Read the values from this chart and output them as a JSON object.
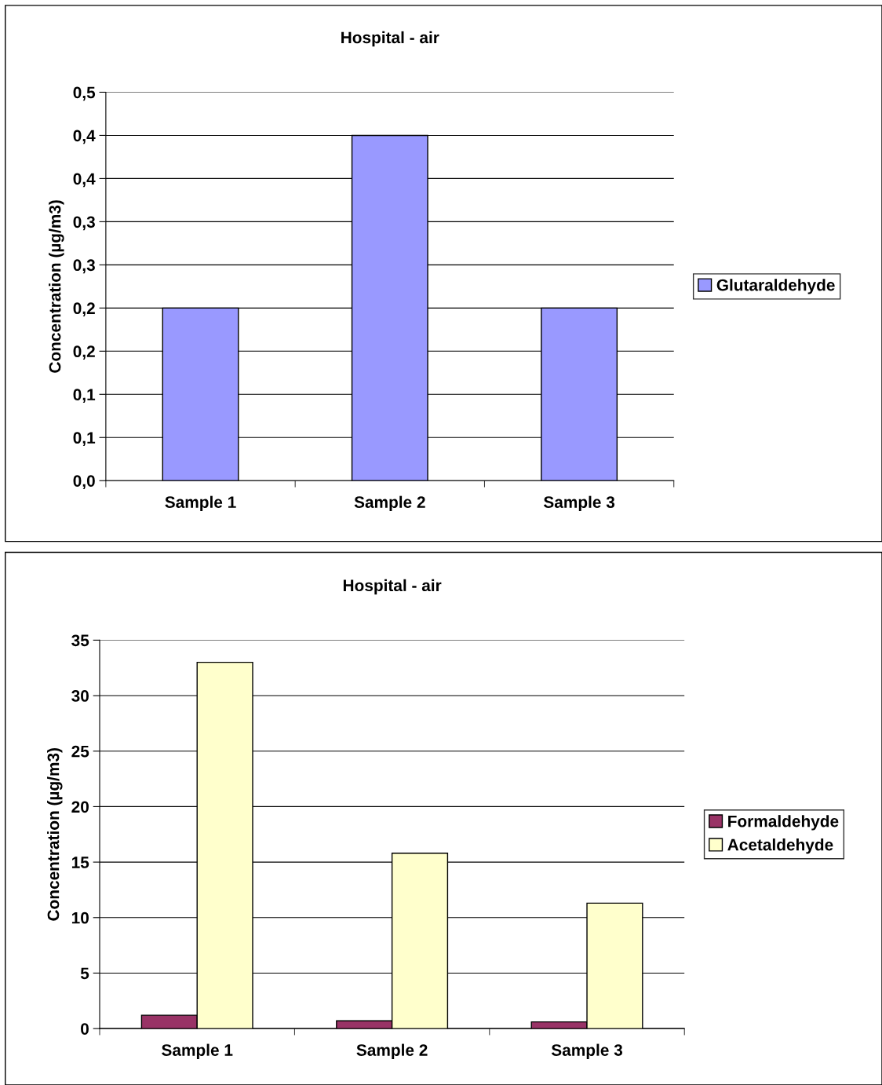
{
  "chart_data": [
    {
      "type": "bar",
      "title": "Hospital - air",
      "ylabel": "Concentration (µg/m3)",
      "categories": [
        "Sample 1",
        "Sample 2",
        "Sample 3"
      ],
      "series": [
        {
          "name": "Glutaraldehyde",
          "color": "#9999ff",
          "values": [
            0.2,
            0.4,
            0.2
          ]
        }
      ],
      "ylim": [
        0,
        0.45
      ],
      "yticks": [
        {
          "value": 0,
          "label": "0,0"
        },
        {
          "value": 0.05,
          "label": "0,1"
        },
        {
          "value": 0.1,
          "label": "0,1"
        },
        {
          "value": 0.15,
          "label": "0,2"
        },
        {
          "value": 0.2,
          "label": "0,2"
        },
        {
          "value": 0.25,
          "label": "0,3"
        },
        {
          "value": 0.3,
          "label": "0,3"
        },
        {
          "value": 0.35,
          "label": "0,4"
        },
        {
          "value": 0.4,
          "label": "0,4"
        },
        {
          "value": 0.45,
          "label": "0,5"
        }
      ],
      "grid": "y",
      "legend": "right"
    },
    {
      "type": "bar",
      "title": "Hospital - air",
      "ylabel": "Concentration (µg/m3)",
      "categories": [
        "Sample 1",
        "Sample 2",
        "Sample 3"
      ],
      "series": [
        {
          "name": "Formaldehyde",
          "color": "#993366",
          "values": [
            1.2,
            0.7,
            0.6
          ]
        },
        {
          "name": "Acetaldehyde",
          "color": "#ffffcc",
          "values": [
            33.0,
            15.8,
            11.3
          ]
        }
      ],
      "ylim": [
        0,
        35
      ],
      "yticks": [
        0,
        5,
        10,
        15,
        20,
        25,
        30,
        35
      ],
      "grid": "y",
      "legend": "right"
    }
  ]
}
